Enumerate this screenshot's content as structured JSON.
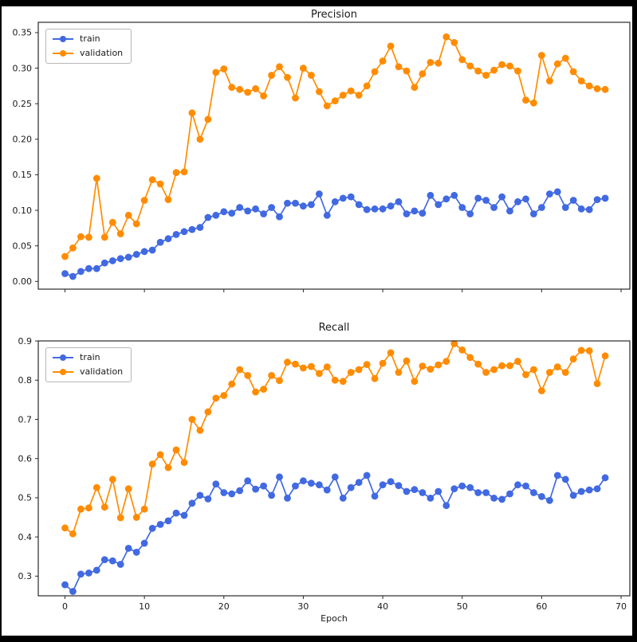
{
  "figure": {
    "background": "#ffffff",
    "frame_color": "#000000",
    "text_color": "#1a1a1a",
    "accent_blue": "#4169e1",
    "accent_orange": "#ff8c00"
  },
  "chart_data": [
    {
      "type": "line",
      "title": "Precision",
      "xlabel": "",
      "ylabel": "",
      "xlim": [
        -3.36,
        71.1
      ],
      "ylim": [
        -0.0109,
        0.3645
      ],
      "xticks": [
        0,
        10,
        20,
        30,
        40,
        50,
        60,
        70
      ],
      "x_tick_labels_visible": false,
      "yticks": [
        0.0,
        0.05,
        0.1,
        0.15,
        0.2,
        0.25,
        0.3,
        0.35
      ],
      "ytick_decimals": 2,
      "grid": false,
      "legend_position": "upper left",
      "x": [
        0,
        1,
        2,
        3,
        4,
        5,
        6,
        7,
        8,
        9,
        10,
        11,
        12,
        13,
        14,
        15,
        16,
        17,
        18,
        19,
        20,
        21,
        22,
        23,
        24,
        25,
        26,
        27,
        28,
        29,
        30,
        31,
        32,
        33,
        34,
        35,
        36,
        37,
        38,
        39,
        40,
        41,
        42,
        43,
        44,
        45,
        46,
        47,
        48,
        49,
        50,
        51,
        52,
        53,
        54,
        55,
        56,
        57,
        58,
        59,
        60,
        61,
        62,
        63,
        64,
        65,
        66,
        67,
        68
      ],
      "series": [
        {
          "name": "train",
          "color": "#4169e1",
          "values": [
            0.011,
            0.007,
            0.014,
            0.018,
            0.018,
            0.026,
            0.029,
            0.032,
            0.034,
            0.038,
            0.042,
            0.044,
            0.055,
            0.06,
            0.066,
            0.07,
            0.073,
            0.076,
            0.09,
            0.093,
            0.098,
            0.096,
            0.104,
            0.099,
            0.102,
            0.095,
            0.104,
            0.091,
            0.11,
            0.11,
            0.106,
            0.108,
            0.123,
            0.093,
            0.112,
            0.117,
            0.119,
            0.108,
            0.101,
            0.102,
            0.102,
            0.106,
            0.112,
            0.095,
            0.099,
            0.096,
            0.121,
            0.108,
            0.116,
            0.121,
            0.104,
            0.095,
            0.117,
            0.114,
            0.104,
            0.119,
            0.099,
            0.112,
            0.116,
            0.095,
            0.104,
            0.123,
            0.126,
            0.104,
            0.114,
            0.102,
            0.101,
            0.115,
            0.117
          ]
        },
        {
          "name": "validation",
          "color": "#ff8c00",
          "values": [
            0.035,
            0.047,
            0.063,
            0.062,
            0.145,
            0.062,
            0.083,
            0.067,
            0.093,
            0.081,
            0.114,
            0.143,
            0.137,
            0.115,
            0.153,
            0.154,
            0.237,
            0.2,
            0.228,
            0.294,
            0.299,
            0.273,
            0.27,
            0.266,
            0.271,
            0.261,
            0.29,
            0.302,
            0.287,
            0.258,
            0.3,
            0.29,
            0.267,
            0.247,
            0.254,
            0.262,
            0.268,
            0.262,
            0.275,
            0.295,
            0.31,
            0.331,
            0.302,
            0.296,
            0.273,
            0.292,
            0.308,
            0.307,
            0.344,
            0.336,
            0.312,
            0.303,
            0.296,
            0.29,
            0.297,
            0.305,
            0.303,
            0.296,
            0.255,
            0.251,
            0.318,
            0.282,
            0.306,
            0.314,
            0.295,
            0.282,
            0.275,
            0.271,
            0.27
          ]
        }
      ]
    },
    {
      "type": "line",
      "title": "Recall",
      "xlabel": "Epoch",
      "ylabel": "",
      "xlim": [
        -3.36,
        71.1
      ],
      "ylim": [
        0.2498,
        0.9002
      ],
      "xticks": [
        0,
        10,
        20,
        30,
        40,
        50,
        60,
        70
      ],
      "x_tick_labels_visible": true,
      "yticks": [
        0.3,
        0.4,
        0.5,
        0.6,
        0.7,
        0.8,
        0.9
      ],
      "ytick_decimals": 1,
      "grid": false,
      "legend_position": "upper left",
      "x": [
        0,
        1,
        2,
        3,
        4,
        5,
        6,
        7,
        8,
        9,
        10,
        11,
        12,
        13,
        14,
        15,
        16,
        17,
        18,
        19,
        20,
        21,
        22,
        23,
        24,
        25,
        26,
        27,
        28,
        29,
        30,
        31,
        32,
        33,
        34,
        35,
        36,
        37,
        38,
        39,
        40,
        41,
        42,
        43,
        44,
        45,
        46,
        47,
        48,
        49,
        50,
        51,
        52,
        53,
        54,
        55,
        56,
        57,
        58,
        59,
        60,
        61,
        62,
        63,
        64,
        65,
        66,
        67,
        68
      ],
      "series": [
        {
          "name": "train",
          "color": "#4169e1",
          "values": [
            0.278,
            0.261,
            0.305,
            0.308,
            0.315,
            0.342,
            0.339,
            0.33,
            0.371,
            0.361,
            0.384,
            0.422,
            0.432,
            0.441,
            0.461,
            0.455,
            0.486,
            0.506,
            0.497,
            0.535,
            0.513,
            0.51,
            0.518,
            0.543,
            0.522,
            0.53,
            0.506,
            0.553,
            0.499,
            0.53,
            0.543,
            0.537,
            0.533,
            0.52,
            0.553,
            0.499,
            0.526,
            0.539,
            0.557,
            0.504,
            0.533,
            0.541,
            0.531,
            0.516,
            0.521,
            0.513,
            0.499,
            0.516,
            0.48,
            0.523,
            0.53,
            0.526,
            0.513,
            0.513,
            0.499,
            0.496,
            0.51,
            0.533,
            0.53,
            0.513,
            0.503,
            0.493,
            0.557,
            0.547,
            0.506,
            0.516,
            0.52,
            0.523,
            0.551
          ]
        },
        {
          "name": "validation",
          "color": "#ff8c00",
          "values": [
            0.423,
            0.408,
            0.471,
            0.474,
            0.526,
            0.476,
            0.547,
            0.449,
            0.523,
            0.45,
            0.471,
            0.586,
            0.61,
            0.577,
            0.622,
            0.59,
            0.7,
            0.672,
            0.719,
            0.754,
            0.761,
            0.79,
            0.827,
            0.812,
            0.77,
            0.777,
            0.812,
            0.799,
            0.846,
            0.841,
            0.831,
            0.835,
            0.817,
            0.834,
            0.8,
            0.797,
            0.82,
            0.827,
            0.84,
            0.804,
            0.843,
            0.87,
            0.82,
            0.849,
            0.797,
            0.836,
            0.828,
            0.839,
            0.848,
            0.893,
            0.877,
            0.858,
            0.841,
            0.82,
            0.827,
            0.837,
            0.837,
            0.848,
            0.814,
            0.827,
            0.773,
            0.82,
            0.834,
            0.82,
            0.854,
            0.876,
            0.875,
            0.791,
            0.862
          ]
        }
      ]
    }
  ]
}
